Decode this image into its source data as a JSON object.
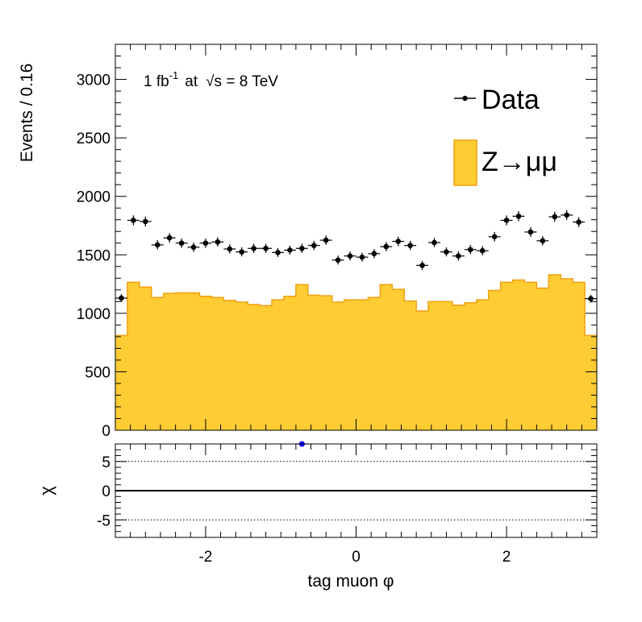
{
  "chart_data": [
    {
      "type": "histogram",
      "panel": "main",
      "ylabel": "Events / 0.16",
      "ylim": [
        0,
        3300
      ],
      "xlim": [
        -3.2,
        3.2
      ],
      "yticks": [
        0,
        500,
        1000,
        1500,
        2000,
        2500,
        3000
      ],
      "ytick_labels": [
        "0",
        "500",
        "1000",
        "1500",
        "2000",
        "2500",
        "3000"
      ],
      "annotation": {
        "lumi": "1 fb",
        "lumi_sup": "-1",
        "at": "at",
        "sqrt": "√s = 8 TeV"
      },
      "legend": {
        "data_label": "Data",
        "mc_label": "Z→μμ"
      },
      "series": [
        {
          "name": "Z→μμ",
          "kind": "filled-step",
          "bin_edges": [
            -3.2,
            -3.04,
            -2.88,
            -2.72,
            -2.56,
            -2.4,
            -2.24,
            -2.08,
            -1.92,
            -1.76,
            -1.6,
            -1.44,
            -1.28,
            -1.12,
            -0.96,
            -0.8,
            -0.64,
            -0.48,
            -0.32,
            -0.16,
            0.0,
            0.16,
            0.32,
            0.48,
            0.64,
            0.8,
            0.96,
            1.12,
            1.28,
            1.44,
            1.6,
            1.76,
            1.92,
            2.08,
            2.24,
            2.4,
            2.56,
            2.72,
            2.88,
            3.04,
            3.2
          ],
          "values": [
            810,
            1265,
            1225,
            1135,
            1170,
            1175,
            1175,
            1145,
            1135,
            1110,
            1095,
            1075,
            1065,
            1115,
            1145,
            1245,
            1155,
            1150,
            1095,
            1115,
            1115,
            1135,
            1245,
            1205,
            1105,
            1020,
            1100,
            1100,
            1070,
            1090,
            1115,
            1195,
            1265,
            1285,
            1265,
            1215,
            1330,
            1295,
            1265,
            810
          ]
        },
        {
          "name": "Data",
          "kind": "points",
          "x": [
            -3.12,
            -2.96,
            -2.8,
            -2.64,
            -2.48,
            -2.32,
            -2.16,
            -2.0,
            -1.84,
            -1.68,
            -1.52,
            -1.36,
            -1.2,
            -1.04,
            -0.88,
            -0.72,
            -0.56,
            -0.4,
            -0.24,
            -0.08,
            0.08,
            0.24,
            0.4,
            0.56,
            0.72,
            0.88,
            1.04,
            1.2,
            1.36,
            1.52,
            1.68,
            1.84,
            2.0,
            2.16,
            2.32,
            2.48,
            2.64,
            2.8,
            2.96,
            3.12
          ],
          "values": [
            1130,
            1795,
            1785,
            1585,
            1645,
            1600,
            1565,
            1600,
            1610,
            1550,
            1525,
            1555,
            1555,
            1520,
            1540,
            1555,
            1580,
            1625,
            1455,
            1490,
            1480,
            1510,
            1570,
            1615,
            1580,
            1410,
            1605,
            1525,
            1490,
            1545,
            1535,
            1655,
            1795,
            1830,
            1695,
            1620,
            1825,
            1840,
            1780,
            1125
          ],
          "xerr": 0.08
        }
      ]
    },
    {
      "type": "scatter",
      "panel": "residual",
      "ylabel": "χ",
      "xlabel": "tag muon φ",
      "ylim": [
        -8,
        8
      ],
      "xlim": [
        -3.2,
        3.2
      ],
      "yticks": [
        -5,
        0,
        5
      ],
      "ytick_labels": [
        "-5",
        "0",
        "5"
      ],
      "xticks": [
        -2,
        0,
        2
      ],
      "xtick_labels": [
        "-2",
        "0",
        "2"
      ],
      "reference_lines": [
        -5,
        0,
        5
      ],
      "points": [
        {
          "x": -0.72,
          "y": 8
        }
      ],
      "point_color": "#0000ff"
    }
  ],
  "colors": {
    "mc_fill": "#ffcc33",
    "mc_line": "#f0a010",
    "data": "#000000",
    "residual_point": "#0000ff"
  }
}
